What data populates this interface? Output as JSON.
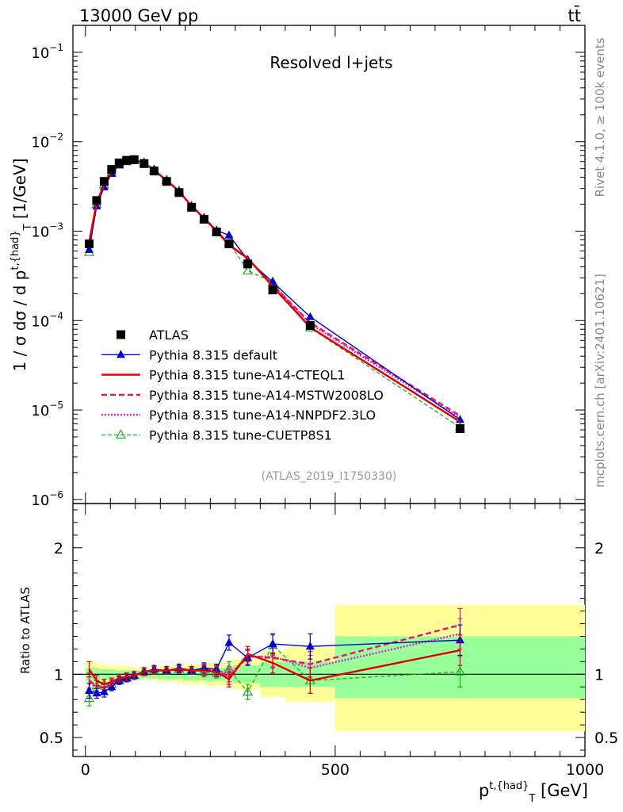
{
  "header": {
    "left": "13000 GeV pp",
    "right": "tt̄",
    "side_rivet": "Rivet 4.1.0, ≥ 100k events",
    "side_mcplots": "mcplots.cern.ch [arXiv:2401.10621]"
  },
  "colors": {
    "data": "#000000",
    "default": "#0000cc",
    "cteql1": "#e00000",
    "mstw": "#ee1166",
    "nnpdf": "#dd22dd",
    "cuetp8s1": "#22aa22",
    "band_outer": "#ffff99",
    "band_inner": "#99ff99"
  },
  "chart_data": [
    {
      "type": "line",
      "title": "Resolved l+jets",
      "watermark": "(ATLAS_2019_I1750330)",
      "ylabel": "1 / σ dσ / d p^{t,{had}}_{T} [1/GeV]",
      "yscale": "log",
      "ylim": [
        9e-07,
        0.2
      ],
      "xlim": [
        -25,
        1000
      ],
      "y_ticks": [
        {
          "v": 0.1,
          "b": "10",
          "e": "−1"
        },
        {
          "v": 0.01,
          "b": "10",
          "e": "−2"
        },
        {
          "v": 0.001,
          "b": "10",
          "e": "−3"
        },
        {
          "v": 0.0001,
          "b": "10",
          "e": "−4"
        },
        {
          "v": 1e-05,
          "b": "10",
          "e": "−5"
        },
        {
          "v": 1e-06,
          "b": "10",
          "e": "−6"
        }
      ],
      "x": [
        7.5,
        22.5,
        37.5,
        52.5,
        67.5,
        82.5,
        97.5,
        117.5,
        137.5,
        162.5,
        187.5,
        212.5,
        237.5,
        262.5,
        287.5,
        325,
        375,
        450,
        750
      ],
      "series": [
        {
          "name": "ATLAS",
          "key": "data",
          "values": [
            0.00072,
            0.0022,
            0.0036,
            0.0049,
            0.0058,
            0.0062,
            0.0063,
            0.0057,
            0.0047,
            0.0036,
            0.0027,
            0.00185,
            0.00136,
            0.00098,
            0.00072,
            0.00043,
            0.00022,
            8.8e-05,
            6.2e-06
          ]
        },
        {
          "name": "Pythia 8.315 default",
          "key": "default",
          "values": [
            0.00062,
            0.0019,
            0.0031,
            0.0044,
            0.0055,
            0.006,
            0.0062,
            0.0058,
            0.0049,
            0.0037,
            0.0028,
            0.0019,
            0.00142,
            0.00102,
            0.0009,
            0.00048,
            0.00027,
            0.00011,
            7.8e-06
          ]
        },
        {
          "name": "Pythia 8.315 tune-A14-CTEQL1",
          "key": "cteql1",
          "values": [
            0.00075,
            0.0021,
            0.0033,
            0.0046,
            0.0056,
            0.0061,
            0.0062,
            0.0058,
            0.0048,
            0.0037,
            0.0028,
            0.0019,
            0.0014,
            0.001,
            0.0007,
            0.0005,
            0.00024,
            8.4e-05,
            7.4e-06
          ]
        },
        {
          "name": "Pythia 8.315 tune-A14-MSTW2008LO",
          "key": "mstw",
          "values": [
            0.00068,
            0.002,
            0.0032,
            0.0046,
            0.0056,
            0.0061,
            0.0062,
            0.0058,
            0.0048,
            0.0037,
            0.0028,
            0.0019,
            0.00141,
            0.00101,
            0.0007,
            0.00049,
            0.00025,
            9.5e-05,
            8.6e-06
          ]
        },
        {
          "name": "Pythia 8.315 tune-A14-NNPDF2.3LO",
          "key": "nnpdf",
          "values": [
            0.00066,
            0.002,
            0.0032,
            0.0045,
            0.0055,
            0.006,
            0.0062,
            0.0058,
            0.0048,
            0.0037,
            0.0028,
            0.0019,
            0.0014,
            0.00101,
            0.00072,
            0.00049,
            0.00025,
            9.2e-05,
            8.2e-06
          ]
        },
        {
          "name": "Pythia 8.315 tune-CUETP8S1",
          "key": "cuetp8s1",
          "values": [
            0.00058,
            0.002,
            0.0033,
            0.0045,
            0.0055,
            0.006,
            0.0062,
            0.0058,
            0.0048,
            0.0037,
            0.0028,
            0.0019,
            0.00138,
            0.00099,
            0.00075,
            0.00036,
            0.00027,
            8.3e-05,
            6.4e-06
          ]
        }
      ]
    },
    {
      "type": "line",
      "ylabel": "Ratio to ATLAS",
      "xlabel": "p^{t,{had}}_{T} [GeV]",
      "ylim": [
        0.35,
        2.35
      ],
      "xlim": [
        -25,
        1000
      ],
      "y_ticks": [
        {
          "v": 0.5,
          "l": "0.5"
        },
        {
          "v": 1,
          "l": "1"
        },
        {
          "v": 2,
          "l": "2"
        }
      ],
      "x_ticks": [
        {
          "v": 0,
          "l": "0"
        },
        {
          "v": 500,
          "l": "500"
        },
        {
          "v": 1000,
          "l": "1000"
        }
      ],
      "bins": [
        0,
        15,
        30,
        45,
        60,
        75,
        90,
        105,
        130,
        145,
        180,
        195,
        230,
        245,
        280,
        295,
        350,
        400,
        500,
        1000
      ],
      "band_outer": [
        [
          0.91,
          1.1
        ],
        [
          0.91,
          1.09
        ],
        [
          0.92,
          1.08
        ],
        [
          0.93,
          1.07
        ],
        [
          0.94,
          1.07
        ],
        [
          0.95,
          1.06
        ],
        [
          0.95,
          1.05
        ],
        [
          0.95,
          1.05
        ],
        [
          0.95,
          1.05
        ],
        [
          0.94,
          1.06
        ],
        [
          0.93,
          1.07
        ],
        [
          0.92,
          1.08
        ],
        [
          0.92,
          1.08
        ],
        [
          0.91,
          1.09
        ],
        [
          0.9,
          1.1
        ],
        [
          0.88,
          1.12
        ],
        [
          0.82,
          1.18
        ],
        [
          0.78,
          1.22
        ],
        [
          0.55,
          1.55
        ]
      ],
      "band_inner": [
        [
          0.95,
          1.05
        ],
        [
          0.95,
          1.05
        ],
        [
          0.96,
          1.04
        ],
        [
          0.96,
          1.04
        ],
        [
          0.97,
          1.03
        ],
        [
          0.97,
          1.03
        ],
        [
          0.97,
          1.03
        ],
        [
          0.97,
          1.03
        ],
        [
          0.97,
          1.03
        ],
        [
          0.96,
          1.04
        ],
        [
          0.96,
          1.04
        ],
        [
          0.95,
          1.05
        ],
        [
          0.95,
          1.05
        ],
        [
          0.95,
          1.05
        ],
        [
          0.94,
          1.06
        ],
        [
          0.93,
          1.07
        ],
        [
          0.9,
          1.1
        ],
        [
          0.9,
          1.1
        ],
        [
          0.81,
          1.3
        ]
      ],
      "x": [
        7.5,
        22.5,
        37.5,
        52.5,
        67.5,
        82.5,
        97.5,
        117.5,
        137.5,
        162.5,
        187.5,
        212.5,
        237.5,
        262.5,
        287.5,
        325,
        375,
        450,
        750
      ],
      "series": [
        {
          "key": "default",
          "values": [
            0.87,
            0.85,
            0.86,
            0.9,
            0.95,
            0.97,
            0.99,
            1.02,
            1.04,
            1.03,
            1.05,
            1.03,
            1.05,
            1.04,
            1.25,
            1.13,
            1.24,
            1.22,
            1.27
          ],
          "err": [
            0.06,
            0.04,
            0.04,
            0.03,
            0.03,
            0.03,
            0.03,
            0.03,
            0.03,
            0.03,
            0.03,
            0.03,
            0.04,
            0.04,
            0.06,
            0.06,
            0.08,
            0.1,
            0.12
          ]
        },
        {
          "key": "cteql1",
          "values": [
            1.04,
            0.95,
            0.92,
            0.94,
            0.97,
            0.98,
            0.99,
            1.02,
            1.03,
            1.03,
            1.04,
            1.03,
            1.03,
            1.02,
            0.96,
            1.16,
            1.09,
            0.95,
            1.19
          ],
          "err": [
            0.06,
            0.04,
            0.04,
            0.03,
            0.03,
            0.03,
            0.03,
            0.03,
            0.03,
            0.03,
            0.03,
            0.03,
            0.04,
            0.04,
            0.06,
            0.06,
            0.08,
            0.1,
            0.12
          ]
        },
        {
          "key": "mstw",
          "values": [
            0.95,
            0.91,
            0.89,
            0.93,
            0.96,
            0.98,
            0.99,
            1.02,
            1.03,
            1.03,
            1.04,
            1.03,
            1.04,
            1.03,
            0.98,
            1.14,
            1.13,
            1.08,
            1.39
          ],
          "err": [
            0.06,
            0.04,
            0.04,
            0.03,
            0.03,
            0.03,
            0.03,
            0.03,
            0.03,
            0.03,
            0.03,
            0.03,
            0.04,
            0.04,
            0.06,
            0.06,
            0.08,
            0.1,
            0.13
          ]
        },
        {
          "key": "nnpdf",
          "values": [
            0.92,
            0.91,
            0.89,
            0.92,
            0.95,
            0.97,
            0.99,
            1.02,
            1.03,
            1.03,
            1.04,
            1.03,
            1.03,
            1.03,
            1.0,
            1.14,
            1.14,
            1.05,
            1.32
          ],
          "err": [
            0.06,
            0.04,
            0.04,
            0.03,
            0.03,
            0.03,
            0.03,
            0.03,
            0.03,
            0.03,
            0.03,
            0.03,
            0.04,
            0.04,
            0.06,
            0.06,
            0.08,
            0.1,
            0.12
          ]
        },
        {
          "key": "cuetp8s1",
          "values": [
            0.81,
            0.91,
            0.92,
            0.92,
            0.95,
            0.97,
            0.99,
            1.02,
            1.03,
            1.03,
            1.04,
            1.03,
            1.02,
            1.01,
            1.04,
            0.86,
            1.23,
            0.95,
            1.02
          ],
          "err": [
            0.06,
            0.04,
            0.04,
            0.03,
            0.03,
            0.03,
            0.03,
            0.03,
            0.03,
            0.03,
            0.03,
            0.03,
            0.04,
            0.04,
            0.06,
            0.06,
            0.08,
            0.1,
            0.12
          ]
        }
      ]
    }
  ]
}
